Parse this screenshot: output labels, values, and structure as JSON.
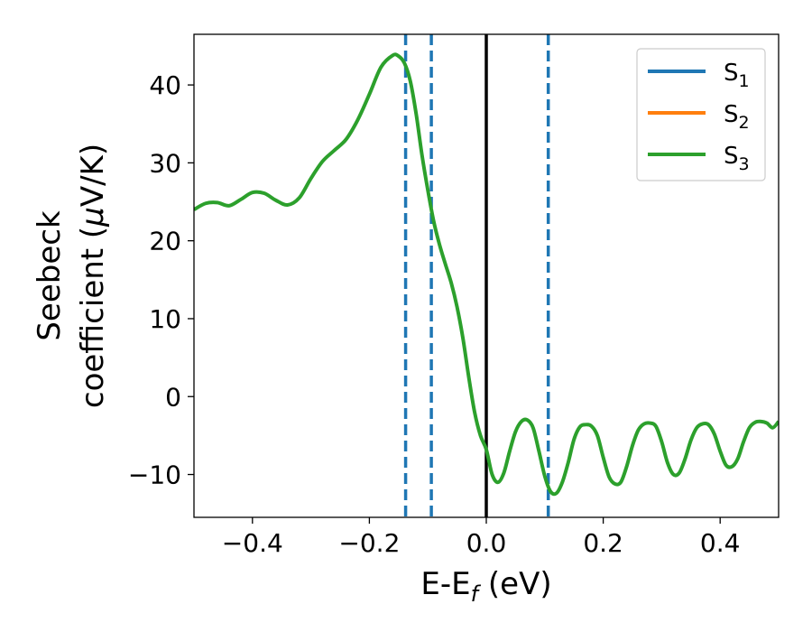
{
  "chart_data": {
    "type": "line",
    "xlabel": {
      "base": "E-E",
      "sub": "f",
      "suffix": " (eV)"
    },
    "ylabel": {
      "line1": "Seebeck",
      "line2_pre": "coefficient  (",
      "line2_mu": "μ",
      "line2_post": "V/K)"
    },
    "xlim": [
      -0.5,
      0.5
    ],
    "ylim": [
      -15.5,
      46.5
    ],
    "x_ticks": [
      -0.4,
      -0.2,
      0.0,
      0.2,
      0.4
    ],
    "x_tick_labels": [
      "−0.4",
      "−0.2",
      "0.0",
      "0.2",
      "0.4"
    ],
    "y_ticks": [
      -10,
      0,
      10,
      20,
      30,
      40
    ],
    "y_tick_labels": [
      "−10",
      "0",
      "10",
      "20",
      "30",
      "40"
    ],
    "grid": false,
    "legend": {
      "placement": "top-right",
      "entries": [
        {
          "label": "S",
          "sub": "1",
          "color": "#1f77b4"
        },
        {
          "label": "S",
          "sub": "2",
          "color": "#ff7f0e"
        },
        {
          "label": "S",
          "sub": "3",
          "color": "#2ca02c"
        }
      ]
    },
    "vertical_lines": [
      {
        "x": -0.138,
        "style": "dashed",
        "color": "#1f77b4"
      },
      {
        "x": -0.094,
        "style": "dashed",
        "color": "#1f77b4"
      },
      {
        "x": 0.0,
        "style": "solid",
        "color": "#000000"
      },
      {
        "x": 0.106,
        "style": "dashed",
        "color": "#1f77b4"
      }
    ],
    "series": [
      {
        "name": "S₃",
        "color": "#2ca02c",
        "x": [
          -0.5,
          -0.48,
          -0.46,
          -0.44,
          -0.42,
          -0.4,
          -0.38,
          -0.36,
          -0.34,
          -0.32,
          -0.3,
          -0.28,
          -0.26,
          -0.24,
          -0.22,
          -0.2,
          -0.18,
          -0.16,
          -0.15,
          -0.14,
          -0.13,
          -0.12,
          -0.11,
          -0.1,
          -0.09,
          -0.08,
          -0.07,
          -0.06,
          -0.05,
          -0.04,
          -0.03,
          -0.02,
          -0.01,
          0.0,
          0.01,
          0.02,
          0.03,
          0.04,
          0.05,
          0.06,
          0.07,
          0.08,
          0.09,
          0.1,
          0.11,
          0.12,
          0.13,
          0.14,
          0.15,
          0.16,
          0.17,
          0.18,
          0.19,
          0.2,
          0.21,
          0.22,
          0.23,
          0.24,
          0.25,
          0.26,
          0.27,
          0.28,
          0.29,
          0.3,
          0.31,
          0.32,
          0.33,
          0.34,
          0.35,
          0.36,
          0.37,
          0.38,
          0.39,
          0.4,
          0.41,
          0.42,
          0.43,
          0.44,
          0.45,
          0.46,
          0.47,
          0.48,
          0.49,
          0.5
        ],
        "y": [
          24,
          24.8,
          24.9,
          24.5,
          25.3,
          26.2,
          26.1,
          25.2,
          24.6,
          25.5,
          28.0,
          30.2,
          31.6,
          33.0,
          35.5,
          38.8,
          42.3,
          43.8,
          43.7,
          42.8,
          40.5,
          36.3,
          31.0,
          26.5,
          22.5,
          19.5,
          17.0,
          14.6,
          11.5,
          7.5,
          2.5,
          -2.0,
          -5.0,
          -6.8,
          -10.0,
          -11.0,
          -9.8,
          -7.0,
          -4.5,
          -3.2,
          -3.0,
          -4.0,
          -7.0,
          -10.2,
          -12.2,
          -12.4,
          -11.0,
          -8.5,
          -5.5,
          -3.9,
          -3.6,
          -3.8,
          -5.0,
          -7.8,
          -10.3,
          -11.2,
          -11.0,
          -9.0,
          -6.3,
          -4.3,
          -3.5,
          -3.4,
          -3.8,
          -5.8,
          -8.5,
          -10.0,
          -9.8,
          -8.0,
          -5.6,
          -4.0,
          -3.5,
          -3.6,
          -4.8,
          -7.0,
          -8.8,
          -9.0,
          -8.0,
          -5.8,
          -4.0,
          -3.3,
          -3.2,
          -3.4,
          -4.0,
          -3.2
        ]
      }
    ]
  }
}
